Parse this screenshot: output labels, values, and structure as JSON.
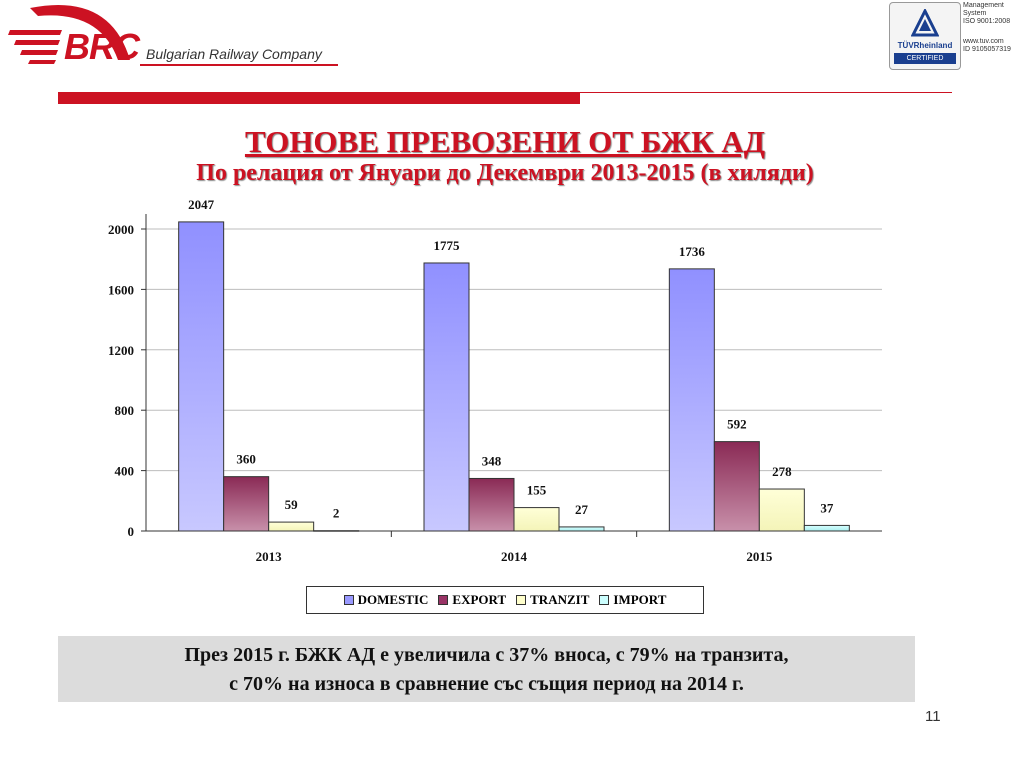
{
  "header": {
    "brand": "BRC",
    "company": "Bulgarian Railway Company",
    "cert_name": "TÜVRheinland",
    "cert_label": "CERTIFIED",
    "cert_lines": [
      "Management",
      "System",
      "ISO 9001:2008"
    ],
    "cert_lines2": [
      "www.tuv.com",
      "ID 9105057319"
    ]
  },
  "title": "ТОНОВЕ ПРЕВОЗЕНИ ОТ БЖК АД",
  "subtitle": "По релация от Януари до Декември 2013-2015 (в хиляди)",
  "note": {
    "line1": "През 2015 г. БЖК АД е увеличила с 37% вноса, с 79% на транзита,",
    "line2": "с 70% на износа в сравнение със същия период на 2014 г."
  },
  "page_number": "11",
  "colors": {
    "accent": "#cc1222",
    "domestic": "#9999ff",
    "export": "#993366",
    "tranzit": "#ffffcc",
    "import": "#ccffff"
  },
  "chart_data": {
    "type": "bar",
    "categories": [
      "2013",
      "2014",
      "2015"
    ],
    "series": [
      {
        "name": "DOMESTIC",
        "values": [
          2047,
          1775,
          1736
        ]
      },
      {
        "name": "EXPORT",
        "values": [
          360,
          348,
          592
        ]
      },
      {
        "name": "TRANZIT",
        "values": [
          59,
          155,
          278
        ]
      },
      {
        "name": "IMPORT",
        "values": [
          2,
          27,
          37
        ]
      }
    ],
    "yticks": [
      0,
      400,
      800,
      1200,
      1600,
      2000
    ],
    "ylim": [
      0,
      2000
    ],
    "grid": true,
    "legend": "bottom"
  }
}
